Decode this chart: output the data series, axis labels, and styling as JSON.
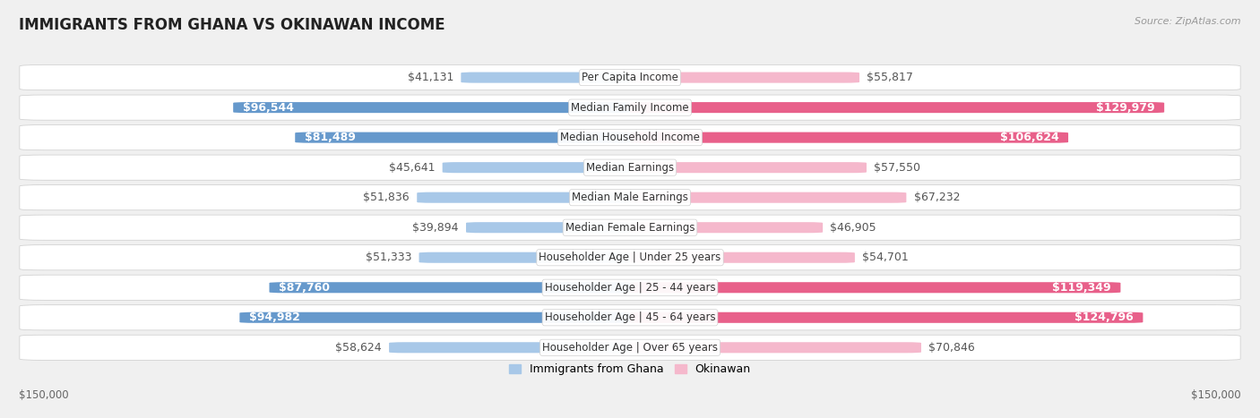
{
  "title": "IMMIGRANTS FROM GHANA VS OKINAWAN INCOME",
  "source": "Source: ZipAtlas.com",
  "categories": [
    "Per Capita Income",
    "Median Family Income",
    "Median Household Income",
    "Median Earnings",
    "Median Male Earnings",
    "Median Female Earnings",
    "Householder Age | Under 25 years",
    "Householder Age | 25 - 44 years",
    "Householder Age | 45 - 64 years",
    "Householder Age | Over 65 years"
  ],
  "ghana_values": [
    41131,
    96544,
    81489,
    45641,
    51836,
    39894,
    51333,
    87760,
    94982,
    58624
  ],
  "okinawan_values": [
    55817,
    129979,
    106624,
    57550,
    67232,
    46905,
    54701,
    119349,
    124796,
    70846
  ],
  "ghana_labels": [
    "$41,131",
    "$96,544",
    "$81,489",
    "$45,641",
    "$51,836",
    "$39,894",
    "$51,333",
    "$87,760",
    "$94,982",
    "$58,624"
  ],
  "okinawan_labels": [
    "$55,817",
    "$129,979",
    "$106,624",
    "$57,550",
    "$67,232",
    "$46,905",
    "$54,701",
    "$119,349",
    "$124,796",
    "$70,846"
  ],
  "ghana_color_light": "#a8c8e8",
  "ghana_color_dark": "#6699cc",
  "okinawan_color_light": "#f5b8cc",
  "okinawan_color_dark": "#e8608a",
  "max_value": 150000,
  "axis_label_left": "$150,000",
  "axis_label_right": "$150,000",
  "legend_ghana": "Immigrants from Ghana",
  "legend_okinawan": "Okinawan",
  "bg_color": "#f0f0f0",
  "row_bg": "#f8f8f8",
  "label_fontsize": 9.0,
  "category_fontsize": 8.5,
  "title_fontsize": 12,
  "ghana_threshold": 0.45,
  "okinawan_threshold": 0.55
}
